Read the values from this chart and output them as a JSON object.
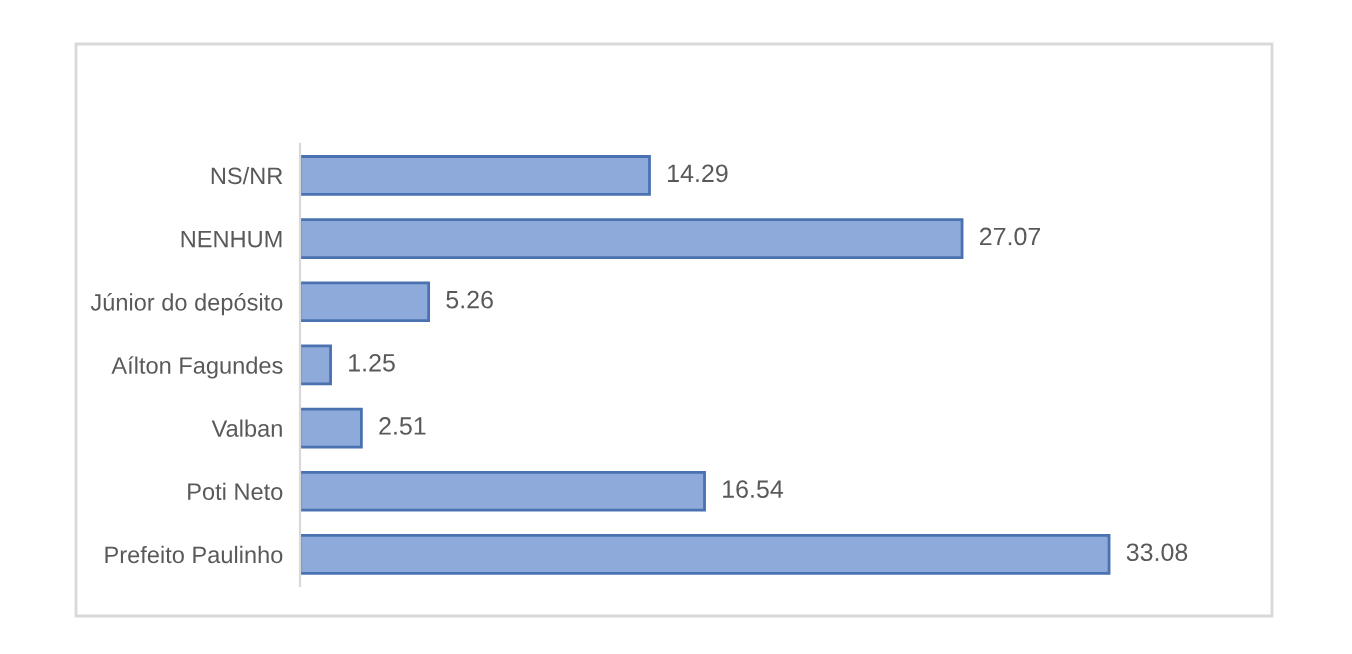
{
  "chart_data": {
    "type": "bar",
    "orientation": "horizontal",
    "categories": [
      "NS/NR",
      "NENHUM",
      "Júnior do depósito",
      "Aílton Fagundes",
      "Valban",
      "Poti Neto",
      "Prefeito Paulinho"
    ],
    "values": [
      14.29,
      27.07,
      5.26,
      1.25,
      2.51,
      16.54,
      33.08
    ],
    "color": "#8eaadb",
    "data_labels": true,
    "grid": false
  }
}
